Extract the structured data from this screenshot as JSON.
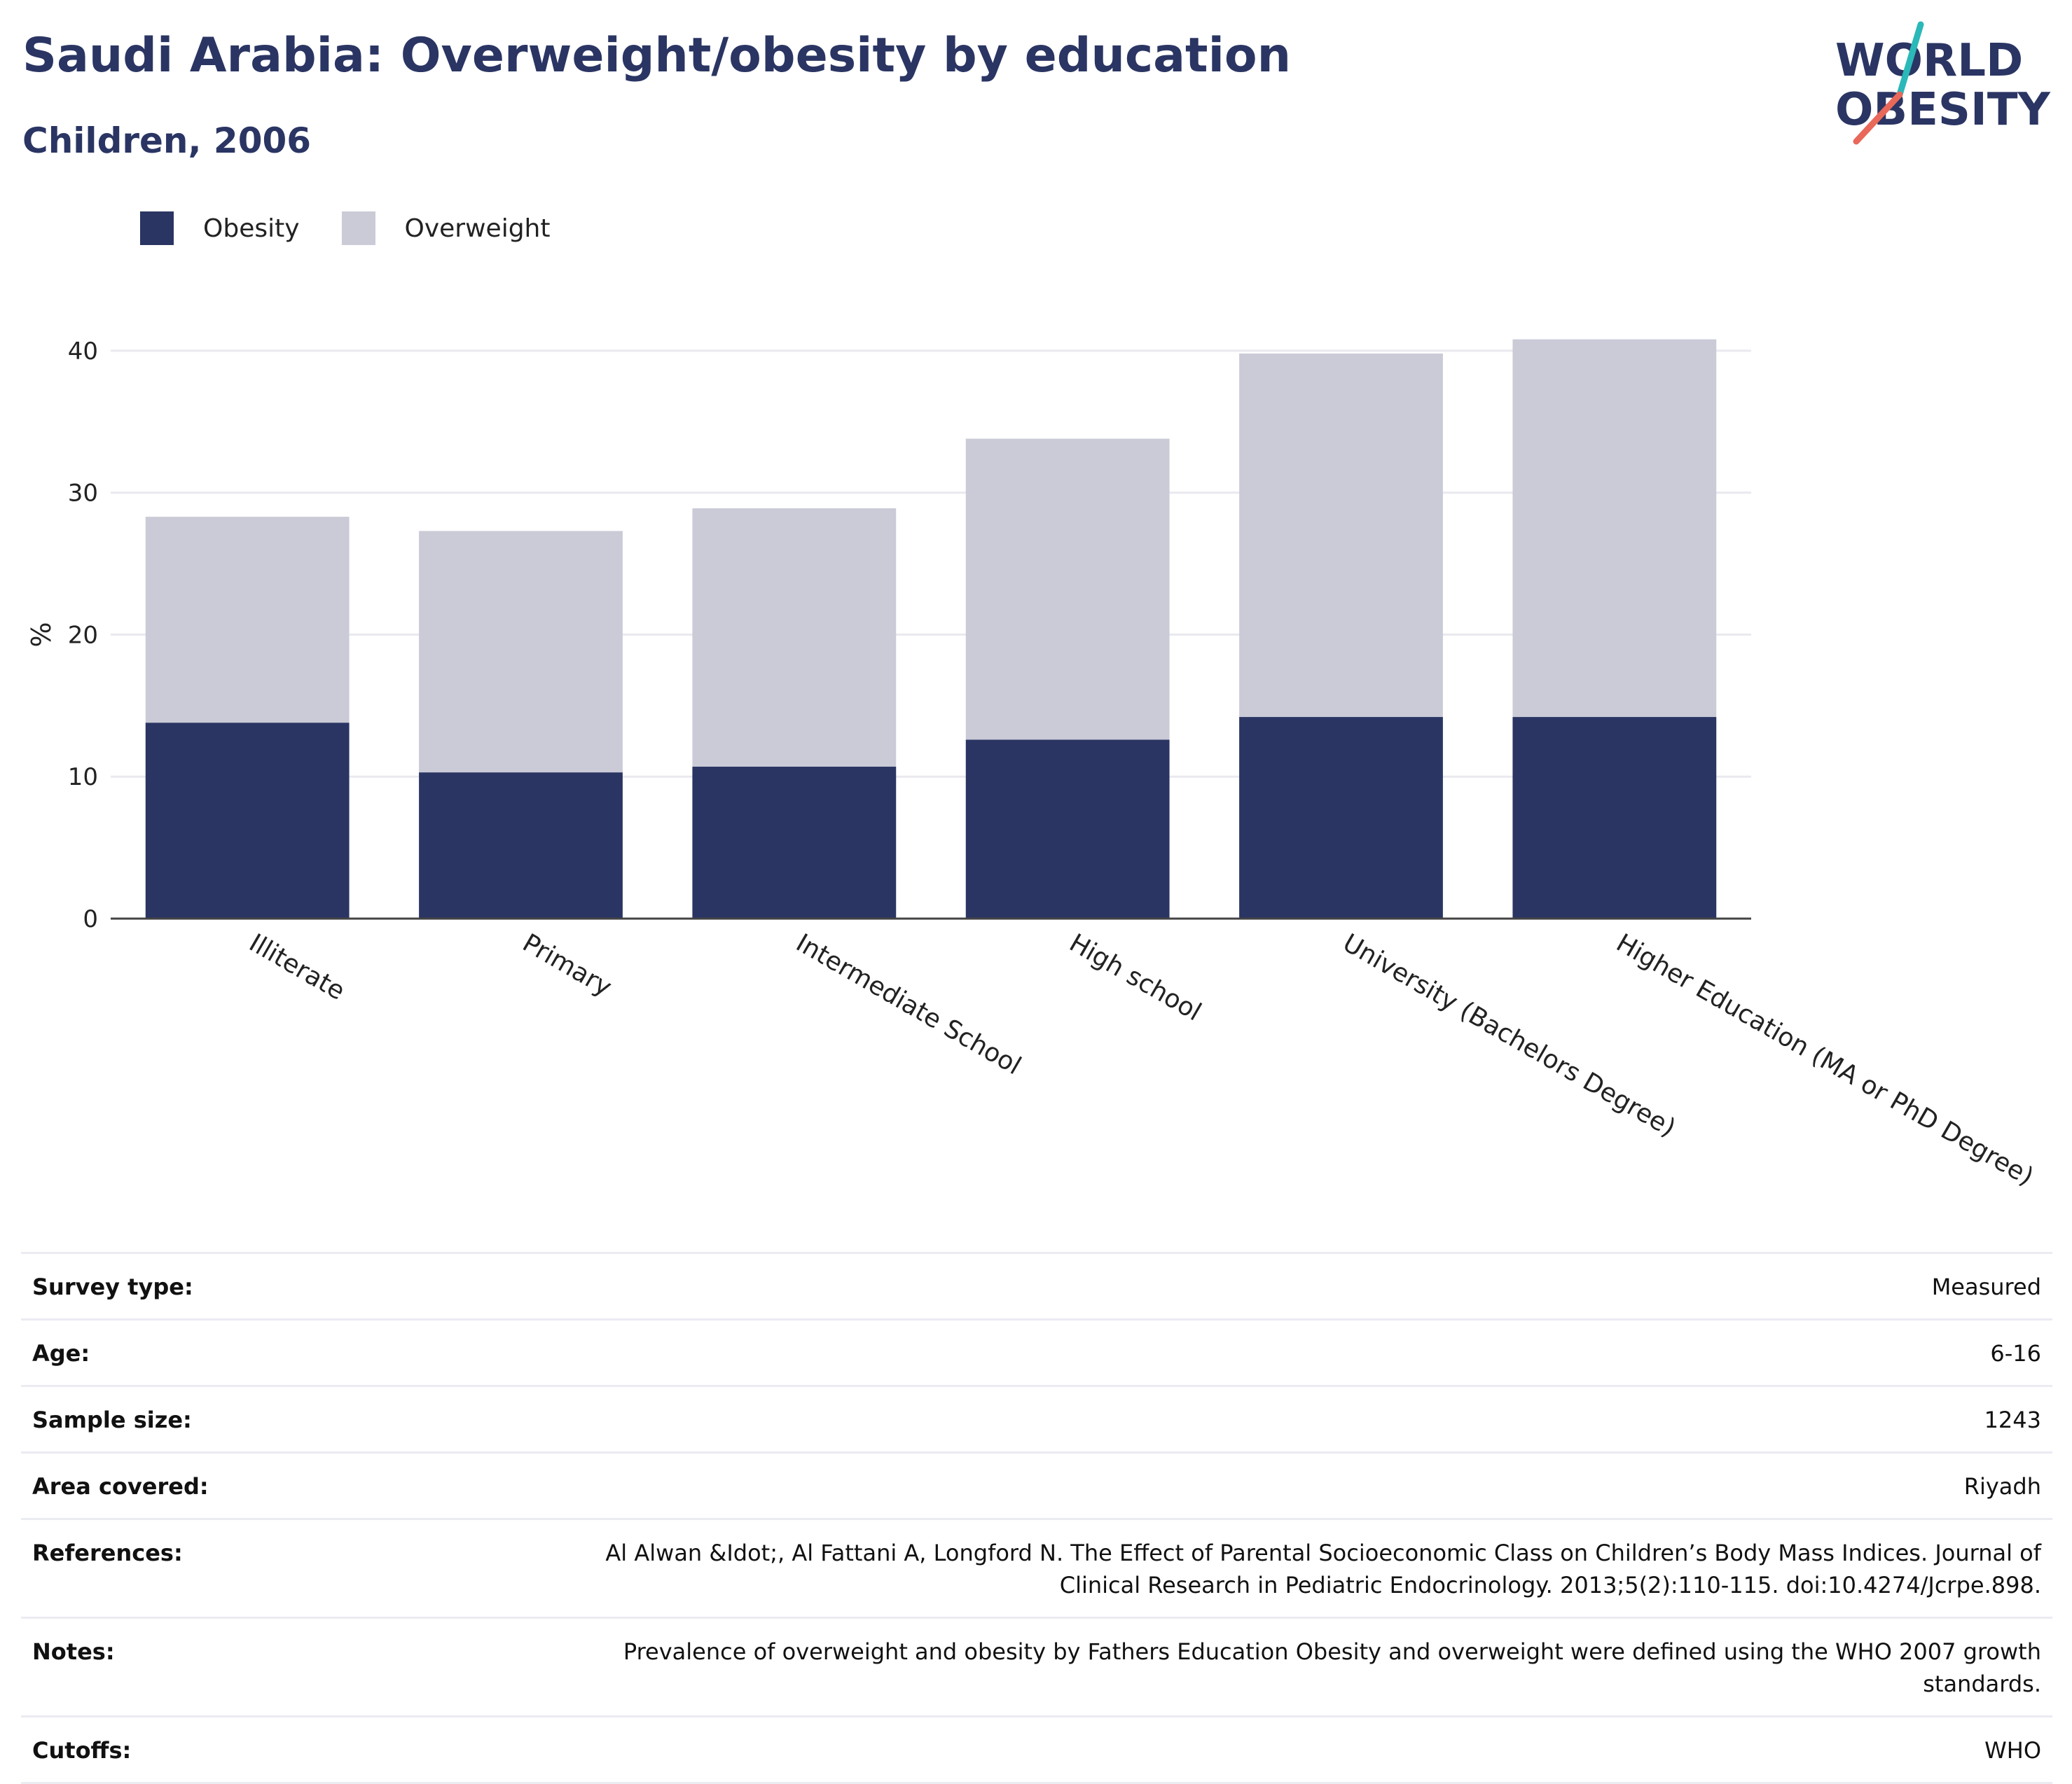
{
  "header": {
    "title": "Saudi Arabia: Overweight/obesity by education",
    "subtitle": "Children, 2006"
  },
  "logo": {
    "line1": "WORLD",
    "line2": "OBESITY",
    "colors": {
      "text": "#2a3563",
      "slash_teal": "#2bb8b8",
      "slash_red": "#e8685a"
    }
  },
  "legend": {
    "items": [
      {
        "label": "Obesity",
        "color": "#2a3563"
      },
      {
        "label": "Overweight",
        "color": "#cacbd7"
      }
    ]
  },
  "chart_data": {
    "type": "bar",
    "stacked": true,
    "categories": [
      "Illiterate",
      "Primary",
      "Intermediate School",
      "High school",
      "University (Bachelors Degree)",
      "Higher Education (MA or PhD Degree)"
    ],
    "series": [
      {
        "name": "Obesity",
        "color": "#2a3563",
        "values": [
          13.8,
          10.3,
          10.7,
          12.6,
          14.2,
          14.2
        ]
      },
      {
        "name": "Overweight",
        "color": "#cacbd7",
        "values": [
          14.5,
          17.0,
          18.2,
          21.2,
          25.6,
          26.6
        ]
      }
    ],
    "ylabel": "%",
    "xlabel": "",
    "ylim": [
      0,
      43
    ],
    "yticks": [
      0,
      10,
      20,
      30,
      40
    ],
    "grid": true,
    "legend_position": "top-left"
  },
  "meta": {
    "rows": [
      {
        "key": "Survey type:",
        "value": "Measured"
      },
      {
        "key": "Age:",
        "value": "6-16"
      },
      {
        "key": "Sample size:",
        "value": "1243"
      },
      {
        "key": "Area covered:",
        "value": "Riyadh"
      },
      {
        "key": "References:",
        "value": "Al Alwan &Idot;, Al Fattani A, Longford N. The Effect of Parental Socioeconomic Class on Children’s Body Mass Indices. Journal of Clinical Research in Pediatric Endocrinology. 2013;5(2):110-115. doi:10.4274/Jcrpe.898."
      },
      {
        "key": "Notes:",
        "value": "Prevalence of overweight and obesity by Fathers Education Obesity and overweight were defined using the WHO 2007 growth standards."
      },
      {
        "key": "Cutoffs:",
        "value": "WHO"
      }
    ]
  }
}
